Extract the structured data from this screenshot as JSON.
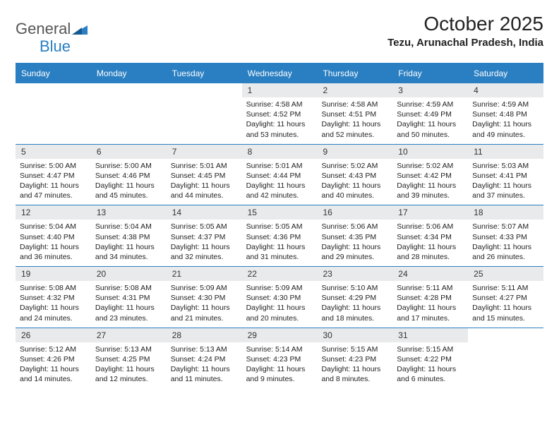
{
  "logo": {
    "word1": "General",
    "word2": "Blue"
  },
  "title": "October 2025",
  "location": "Tezu, Arunachal Pradesh, India",
  "colors": {
    "accent": "#2a7fc2",
    "header_bg": "#e9eaeb",
    "page_bg": "#ffffff",
    "text": "#222222",
    "logo_gray": "#555555"
  },
  "weekdays": [
    "Sunday",
    "Monday",
    "Tuesday",
    "Wednesday",
    "Thursday",
    "Friday",
    "Saturday"
  ],
  "weeks": [
    [
      {
        "n": "",
        "info": []
      },
      {
        "n": "",
        "info": []
      },
      {
        "n": "",
        "info": []
      },
      {
        "n": "1",
        "info": [
          "Sunrise: 4:58 AM",
          "Sunset: 4:52 PM",
          "Daylight: 11 hours",
          "and 53 minutes."
        ]
      },
      {
        "n": "2",
        "info": [
          "Sunrise: 4:58 AM",
          "Sunset: 4:51 PM",
          "Daylight: 11 hours",
          "and 52 minutes."
        ]
      },
      {
        "n": "3",
        "info": [
          "Sunrise: 4:59 AM",
          "Sunset: 4:49 PM",
          "Daylight: 11 hours",
          "and 50 minutes."
        ]
      },
      {
        "n": "4",
        "info": [
          "Sunrise: 4:59 AM",
          "Sunset: 4:48 PM",
          "Daylight: 11 hours",
          "and 49 minutes."
        ]
      }
    ],
    [
      {
        "n": "5",
        "info": [
          "Sunrise: 5:00 AM",
          "Sunset: 4:47 PM",
          "Daylight: 11 hours",
          "and 47 minutes."
        ]
      },
      {
        "n": "6",
        "info": [
          "Sunrise: 5:00 AM",
          "Sunset: 4:46 PM",
          "Daylight: 11 hours",
          "and 45 minutes."
        ]
      },
      {
        "n": "7",
        "info": [
          "Sunrise: 5:01 AM",
          "Sunset: 4:45 PM",
          "Daylight: 11 hours",
          "and 44 minutes."
        ]
      },
      {
        "n": "8",
        "info": [
          "Sunrise: 5:01 AM",
          "Sunset: 4:44 PM",
          "Daylight: 11 hours",
          "and 42 minutes."
        ]
      },
      {
        "n": "9",
        "info": [
          "Sunrise: 5:02 AM",
          "Sunset: 4:43 PM",
          "Daylight: 11 hours",
          "and 40 minutes."
        ]
      },
      {
        "n": "10",
        "info": [
          "Sunrise: 5:02 AM",
          "Sunset: 4:42 PM",
          "Daylight: 11 hours",
          "and 39 minutes."
        ]
      },
      {
        "n": "11",
        "info": [
          "Sunrise: 5:03 AM",
          "Sunset: 4:41 PM",
          "Daylight: 11 hours",
          "and 37 minutes."
        ]
      }
    ],
    [
      {
        "n": "12",
        "info": [
          "Sunrise: 5:04 AM",
          "Sunset: 4:40 PM",
          "Daylight: 11 hours",
          "and 36 minutes."
        ]
      },
      {
        "n": "13",
        "info": [
          "Sunrise: 5:04 AM",
          "Sunset: 4:38 PM",
          "Daylight: 11 hours",
          "and 34 minutes."
        ]
      },
      {
        "n": "14",
        "info": [
          "Sunrise: 5:05 AM",
          "Sunset: 4:37 PM",
          "Daylight: 11 hours",
          "and 32 minutes."
        ]
      },
      {
        "n": "15",
        "info": [
          "Sunrise: 5:05 AM",
          "Sunset: 4:36 PM",
          "Daylight: 11 hours",
          "and 31 minutes."
        ]
      },
      {
        "n": "16",
        "info": [
          "Sunrise: 5:06 AM",
          "Sunset: 4:35 PM",
          "Daylight: 11 hours",
          "and 29 minutes."
        ]
      },
      {
        "n": "17",
        "info": [
          "Sunrise: 5:06 AM",
          "Sunset: 4:34 PM",
          "Daylight: 11 hours",
          "and 28 minutes."
        ]
      },
      {
        "n": "18",
        "info": [
          "Sunrise: 5:07 AM",
          "Sunset: 4:33 PM",
          "Daylight: 11 hours",
          "and 26 minutes."
        ]
      }
    ],
    [
      {
        "n": "19",
        "info": [
          "Sunrise: 5:08 AM",
          "Sunset: 4:32 PM",
          "Daylight: 11 hours",
          "and 24 minutes."
        ]
      },
      {
        "n": "20",
        "info": [
          "Sunrise: 5:08 AM",
          "Sunset: 4:31 PM",
          "Daylight: 11 hours",
          "and 23 minutes."
        ]
      },
      {
        "n": "21",
        "info": [
          "Sunrise: 5:09 AM",
          "Sunset: 4:30 PM",
          "Daylight: 11 hours",
          "and 21 minutes."
        ]
      },
      {
        "n": "22",
        "info": [
          "Sunrise: 5:09 AM",
          "Sunset: 4:30 PM",
          "Daylight: 11 hours",
          "and 20 minutes."
        ]
      },
      {
        "n": "23",
        "info": [
          "Sunrise: 5:10 AM",
          "Sunset: 4:29 PM",
          "Daylight: 11 hours",
          "and 18 minutes."
        ]
      },
      {
        "n": "24",
        "info": [
          "Sunrise: 5:11 AM",
          "Sunset: 4:28 PM",
          "Daylight: 11 hours",
          "and 17 minutes."
        ]
      },
      {
        "n": "25",
        "info": [
          "Sunrise: 5:11 AM",
          "Sunset: 4:27 PM",
          "Daylight: 11 hours",
          "and 15 minutes."
        ]
      }
    ],
    [
      {
        "n": "26",
        "info": [
          "Sunrise: 5:12 AM",
          "Sunset: 4:26 PM",
          "Daylight: 11 hours",
          "and 14 minutes."
        ]
      },
      {
        "n": "27",
        "info": [
          "Sunrise: 5:13 AM",
          "Sunset: 4:25 PM",
          "Daylight: 11 hours",
          "and 12 minutes."
        ]
      },
      {
        "n": "28",
        "info": [
          "Sunrise: 5:13 AM",
          "Sunset: 4:24 PM",
          "Daylight: 11 hours",
          "and 11 minutes."
        ]
      },
      {
        "n": "29",
        "info": [
          "Sunrise: 5:14 AM",
          "Sunset: 4:23 PM",
          "Daylight: 11 hours",
          "and 9 minutes."
        ]
      },
      {
        "n": "30",
        "info": [
          "Sunrise: 5:15 AM",
          "Sunset: 4:23 PM",
          "Daylight: 11 hours",
          "and 8 minutes."
        ]
      },
      {
        "n": "31",
        "info": [
          "Sunrise: 5:15 AM",
          "Sunset: 4:22 PM",
          "Daylight: 11 hours",
          "and 6 minutes."
        ]
      },
      {
        "n": "",
        "info": []
      }
    ]
  ]
}
